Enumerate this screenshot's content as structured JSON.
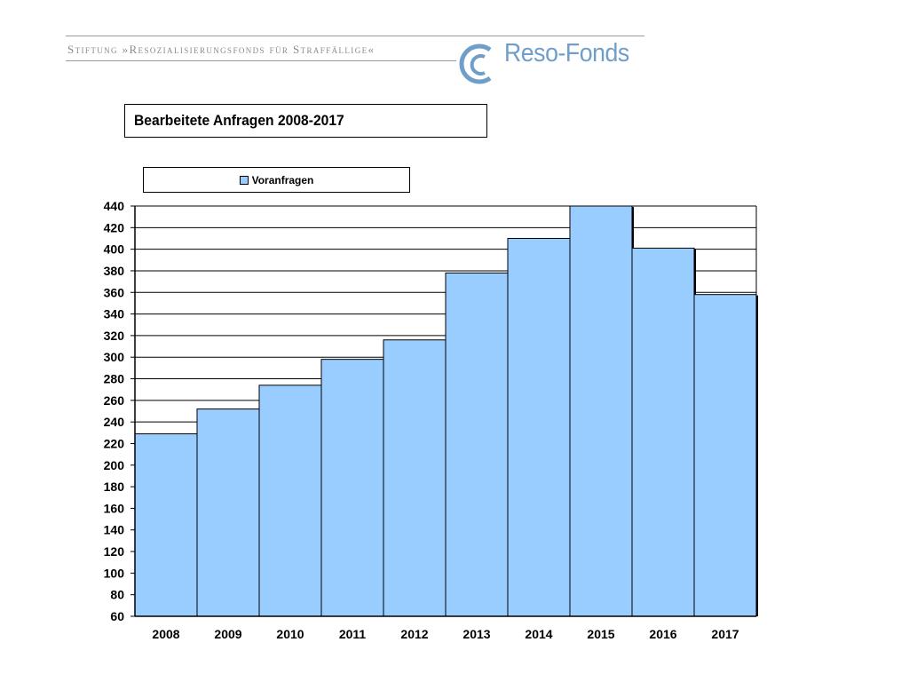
{
  "header": {
    "foundation_name": "Stiftung »Resozialisierungsfonds für Straffällige«",
    "logo_text": "Reso-Fonds"
  },
  "chart_data": {
    "type": "bar",
    "title": "Bearbeitete Anfragen 2008-2017",
    "categories": [
      "2008",
      "2009",
      "2010",
      "2011",
      "2012",
      "2013",
      "2014",
      "2015",
      "2016",
      "2017"
    ],
    "series": [
      {
        "name": "Voranfragen",
        "values": [
          229,
          252,
          274,
          298,
          316,
          378,
          410,
          440,
          401,
          358
        ],
        "color": "#99ccff"
      }
    ],
    "xlabel": "",
    "ylabel": "",
    "ylim": [
      60,
      440
    ],
    "yticks": [
      60,
      80,
      100,
      120,
      140,
      160,
      180,
      200,
      220,
      240,
      260,
      280,
      300,
      320,
      340,
      360,
      380,
      400,
      420,
      440
    ],
    "grid": true,
    "legend": "top"
  }
}
